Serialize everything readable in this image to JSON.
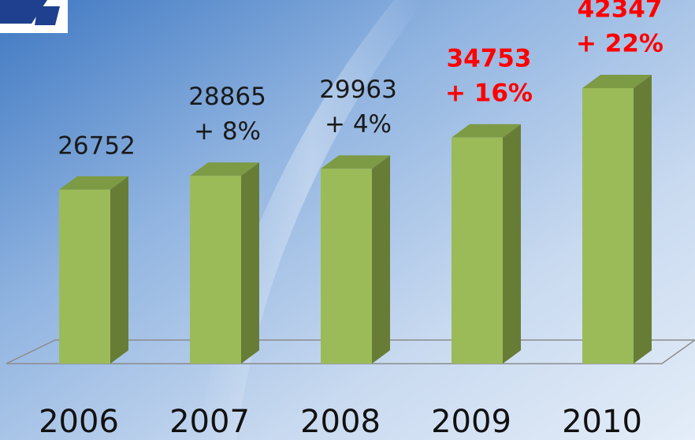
{
  "chart_data": {
    "type": "bar3d",
    "categories": [
      "2006",
      "2007",
      "2008",
      "2009",
      "2010"
    ],
    "values": [
      26752,
      28865,
      29963,
      34753,
      42347
    ],
    "annotations": [
      null,
      "+ 8%",
      "+ 4%",
      "+ 16%",
      "+ 22%"
    ],
    "label_colors": [
      "#1a1a1a",
      "#1a1a1a",
      "#1a1a1a",
      "#ff0000",
      "#ff0000"
    ],
    "color": "#9bbb59"
  }
}
